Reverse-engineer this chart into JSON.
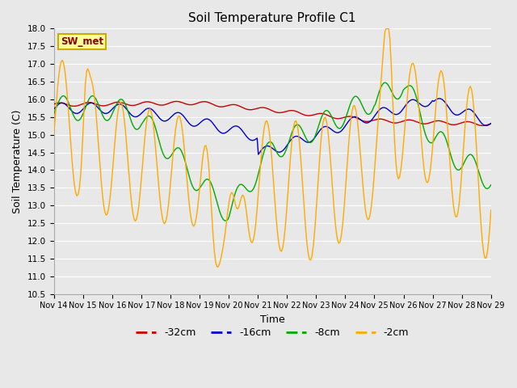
{
  "title": "Soil Temperature Profile C1",
  "xlabel": "Time",
  "ylabel": "Soil Temperature (C)",
  "ylim": [
    10.5,
    18.0
  ],
  "xtick_labels": [
    "Nov 14",
    "Nov 15",
    "Nov 16",
    "Nov 17",
    "Nov 18",
    "Nov 19",
    "Nov 20",
    "Nov 21",
    "Nov 22",
    "Nov 23",
    "Nov 24",
    "Nov 25",
    "Nov 26",
    "Nov 27",
    "Nov 28",
    "Nov 29"
  ],
  "legend_label": "SW_met",
  "line_colors": {
    "-32cm": "#cc0000",
    "-16cm": "#0000cc",
    "-8cm": "#00aa00",
    "-2cm": "#ffaa00"
  },
  "background_color": "#e8e8e8",
  "plot_bg_color": "#e8e8e8",
  "grid_color": "#ffffff"
}
